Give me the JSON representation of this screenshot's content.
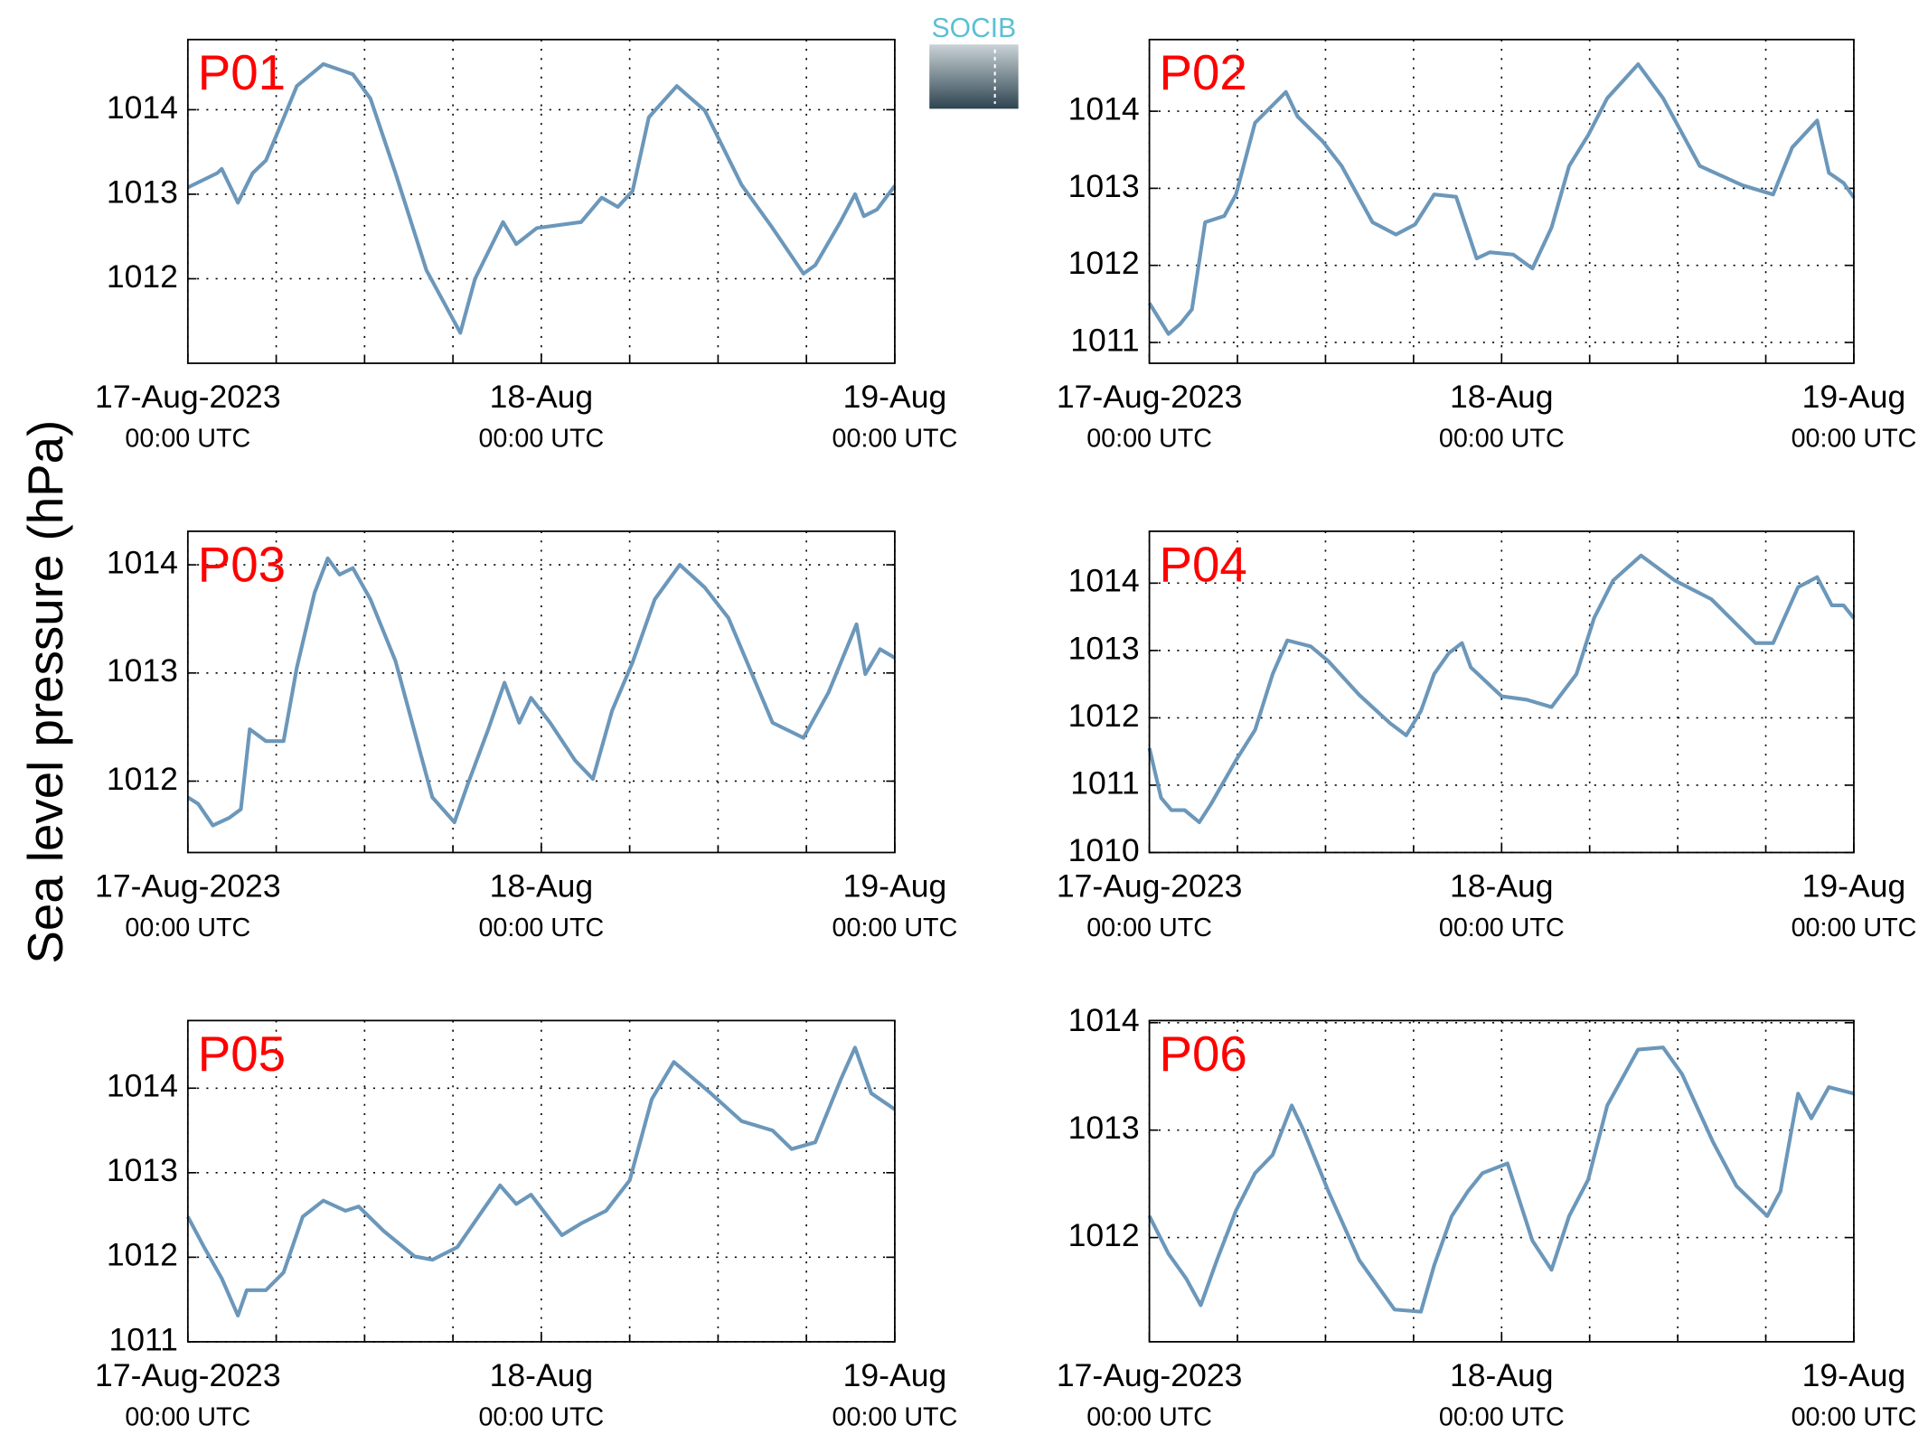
{
  "ylabel": "Sea level pressure (hPa)",
  "logo": "SOCIB",
  "chart_data": [
    {
      "type": "line",
      "title": "P01",
      "title_color": "#ff0000",
      "color": "#6b97ba",
      "x": [
        0,
        2,
        2.3,
        3.4,
        4.4,
        5.3,
        6.5,
        7.4,
        9.2,
        11.2,
        12.4,
        14.1,
        16.2,
        18.5,
        19.5,
        21.4,
        22.3,
        23.7,
        26.7,
        28.1,
        29.2,
        30.2,
        31.3,
        33.2,
        35.1,
        37.6,
        39.7,
        41.8,
        42.6,
        44.3,
        45.3,
        45.9,
        46.8,
        48
      ],
      "values": [
        1013.08,
        1013.25,
        1013.3,
        1012.9,
        1013.25,
        1013.4,
        1013.9,
        1014.28,
        1014.54,
        1014.42,
        1014.13,
        1013.25,
        1012.1,
        1011.36,
        1012.0,
        1012.67,
        1012.41,
        1012.6,
        1012.67,
        1012.96,
        1012.85,
        1013.04,
        1013.91,
        1014.28,
        1013.99,
        1013.11,
        1012.6,
        1012.06,
        1012.16,
        1012.67,
        1013.0,
        1012.74,
        1012.82,
        1013.1
      ],
      "xlim": [
        0,
        48
      ],
      "xticks": [
        {
          "value": 0,
          "label": [
            "17-Aug-2023",
            "00:00 UTC"
          ]
        },
        {
          "value": 24,
          "label": [
            "18-Aug",
            "00:00 UTC"
          ]
        },
        {
          "value": 48,
          "label": [
            "19-Aug",
            "00:00 UTC"
          ]
        }
      ],
      "xminorticks": [
        6,
        12,
        18,
        30,
        36,
        42
      ],
      "ylim": [
        1011.0,
        1014.83
      ],
      "yticks": [
        1012,
        1013,
        1014
      ],
      "grid": true
    },
    {
      "type": "line",
      "title": "P02",
      "title_color": "#ff0000",
      "color": "#6b97ba",
      "x": [
        0,
        1.3,
        2.1,
        2.9,
        3.8,
        5.1,
        5.9,
        7.2,
        9.3,
        10.1,
        11.8,
        13.1,
        15.2,
        16.8,
        18.1,
        19.4,
        20.9,
        22.3,
        23.2,
        24.8,
        26.1,
        27.4,
        28.6,
        29.9,
        31.2,
        33.3,
        35.0,
        37.5,
        40.4,
        42.5,
        43.8,
        45.5,
        46.3,
        47.3,
        48
      ],
      "values": [
        1011.51,
        1011.11,
        1011.24,
        1011.43,
        1012.56,
        1012.64,
        1012.92,
        1013.85,
        1014.25,
        1013.93,
        1013.61,
        1013.29,
        1012.56,
        1012.4,
        1012.53,
        1012.92,
        1012.89,
        1012.09,
        1012.17,
        1012.14,
        1011.96,
        1012.49,
        1013.29,
        1013.69,
        1014.17,
        1014.61,
        1014.17,
        1013.29,
        1013.04,
        1012.92,
        1013.53,
        1013.88,
        1013.2,
        1013.07,
        1012.88
      ],
      "xlim": [
        0,
        48
      ],
      "xticks": [
        {
          "value": 0,
          "label": [
            "17-Aug-2023",
            "00:00 UTC"
          ]
        },
        {
          "value": 24,
          "label": [
            "18-Aug",
            "00:00 UTC"
          ]
        },
        {
          "value": 48,
          "label": [
            "19-Aug",
            "00:00 UTC"
          ]
        }
      ],
      "xminorticks": [
        6,
        12,
        18,
        30,
        36,
        42
      ],
      "ylim": [
        1010.73,
        1014.93
      ],
      "yticks": [
        1011,
        1012,
        1013,
        1014
      ],
      "grid": true
    },
    {
      "type": "line",
      "title": "P03",
      "title_color": "#ff0000",
      "color": "#6b97ba",
      "x": [
        0,
        0.7,
        1.7,
        2.8,
        3.6,
        4.2,
        5.3,
        6.5,
        7.4,
        8.6,
        9.5,
        10.3,
        11.2,
        12.4,
        14.1,
        16.6,
        18.1,
        19.0,
        20.4,
        21.5,
        22.5,
        23.3,
        24.6,
        26.3,
        27.5,
        28.8,
        30.2,
        31.7,
        33.4,
        35.1,
        36.7,
        39.7,
        41.8,
        43.5,
        45.4,
        46.0,
        47.0,
        48
      ],
      "values": [
        1011.85,
        1011.79,
        1011.59,
        1011.66,
        1011.74,
        1012.48,
        1012.37,
        1012.37,
        1013.05,
        1013.74,
        1014.06,
        1013.91,
        1013.97,
        1013.68,
        1013.11,
        1011.85,
        1011.62,
        1011.97,
        1012.48,
        1012.91,
        1012.54,
        1012.77,
        1012.54,
        1012.19,
        1012.02,
        1012.65,
        1013.1,
        1013.68,
        1014.0,
        1013.79,
        1013.51,
        1012.54,
        1012.4,
        1012.82,
        1013.45,
        1012.99,
        1013.22,
        1013.14
      ],
      "xlim": [
        0,
        48
      ],
      "xticks": [
        {
          "value": 0,
          "label": [
            "17-Aug-2023",
            "00:00 UTC"
          ]
        },
        {
          "value": 24,
          "label": [
            "18-Aug",
            "00:00 UTC"
          ]
        },
        {
          "value": 48,
          "label": [
            "19-Aug",
            "00:00 UTC"
          ]
        }
      ],
      "xminorticks": [
        6,
        12,
        18,
        30,
        36,
        42
      ],
      "ylim": [
        1011.34,
        1014.31
      ],
      "yticks": [
        1012,
        1013,
        1014
      ],
      "grid": true
    },
    {
      "type": "line",
      "title": "P04",
      "title_color": "#ff0000",
      "color": "#6b97ba",
      "x": [
        0,
        0.8,
        1.5,
        2.4,
        3.4,
        4.2,
        5.9,
        7.2,
        8.4,
        9.4,
        11.0,
        12.2,
        14.3,
        16.4,
        17.5,
        18.5,
        19.4,
        20.4,
        21.3,
        21.9,
        24.0,
        25.7,
        27.4,
        29.1,
        30.3,
        31.6,
        33.5,
        35.8,
        38.3,
        41.3,
        42.5,
        44.2,
        45.5,
        46.5,
        47.3,
        48
      ],
      "values": [
        1011.55,
        1010.81,
        1010.63,
        1010.63,
        1010.45,
        1010.72,
        1011.37,
        1011.82,
        1012.65,
        1013.15,
        1013.06,
        1012.84,
        1012.34,
        1011.92,
        1011.74,
        1012.1,
        1012.65,
        1012.96,
        1013.11,
        1012.75,
        1012.32,
        1012.27,
        1012.16,
        1012.65,
        1013.48,
        1014.04,
        1014.41,
        1014.04,
        1013.76,
        1013.11,
        1013.11,
        1013.94,
        1014.09,
        1013.67,
        1013.67,
        1013.48
      ],
      "xlim": [
        0,
        48
      ],
      "xticks": [
        {
          "value": 0,
          "label": [
            "17-Aug-2023",
            "00:00 UTC"
          ]
        },
        {
          "value": 24,
          "label": [
            "18-Aug",
            "00:00 UTC"
          ]
        },
        {
          "value": 48,
          "label": [
            "19-Aug",
            "00:00 UTC"
          ]
        }
      ],
      "xminorticks": [
        6,
        12,
        18,
        30,
        36,
        42
      ],
      "ylim": [
        1010,
        1014.77
      ],
      "yticks": [
        1010,
        1011,
        1012,
        1013,
        1014
      ],
      "grid": true
    },
    {
      "type": "line",
      "title": "P05",
      "title_color": "#ff0000",
      "color": "#6b97ba",
      "x": [
        0,
        1.1,
        2.3,
        3.4,
        4.0,
        5.3,
        6.5,
        7.8,
        9.2,
        10.7,
        11.6,
        13.3,
        15.4,
        16.6,
        18.3,
        20.0,
        21.2,
        22.3,
        23.3,
        25.4,
        26.7,
        28.4,
        30.0,
        31.5,
        33.0,
        35.5,
        37.6,
        39.7,
        41.0,
        42.6,
        44.3,
        45.3,
        46.4,
        48
      ],
      "values": [
        1012.48,
        1012.12,
        1011.75,
        1011.31,
        1011.61,
        1011.61,
        1011.82,
        1012.48,
        1012.67,
        1012.55,
        1012.6,
        1012.31,
        1012.01,
        1011.97,
        1012.12,
        1012.55,
        1012.85,
        1012.63,
        1012.74,
        1012.26,
        1012.4,
        1012.55,
        1012.91,
        1013.87,
        1014.31,
        1013.94,
        1013.61,
        1013.5,
        1013.28,
        1013.36,
        1014.09,
        1014.48,
        1013.94,
        1013.75
      ],
      "xlim": [
        0,
        48
      ],
      "xticks": [
        {
          "value": 0,
          "label": [
            "17-Aug-2023",
            "00:00 UTC"
          ]
        },
        {
          "value": 24,
          "label": [
            "18-Aug",
            "00:00 UTC"
          ]
        },
        {
          "value": 48,
          "label": [
            "19-Aug",
            "00:00 UTC"
          ]
        }
      ],
      "xminorticks": [
        6,
        12,
        18,
        30,
        36,
        42
      ],
      "ylim": [
        1011,
        1014.8
      ],
      "yticks": [
        1011,
        1012,
        1013,
        1014
      ],
      "grid": true
    },
    {
      "type": "line",
      "title": "P06",
      "title_color": "#ff0000",
      "color": "#6b97ba",
      "x": [
        0,
        1.3,
        2.5,
        3.5,
        4.6,
        5.9,
        7.2,
        8.4,
        9.7,
        10.5,
        12.2,
        14.3,
        16.7,
        18.5,
        19.4,
        20.6,
        21.7,
        22.7,
        24.4,
        26.1,
        27.4,
        28.6,
        29.9,
        31.2,
        33.3,
        35.0,
        36.3,
        38.4,
        40.0,
        42.1,
        43.0,
        44.2,
        45.1,
        46.3,
        48
      ],
      "values": [
        1012.2,
        1011.85,
        1011.62,
        1011.37,
        1011.79,
        1012.25,
        1012.6,
        1012.77,
        1013.23,
        1013.0,
        1012.43,
        1011.79,
        1011.33,
        1011.31,
        1011.74,
        1012.2,
        1012.43,
        1012.6,
        1012.69,
        1011.97,
        1011.7,
        1012.2,
        1012.54,
        1013.23,
        1013.75,
        1013.77,
        1013.52,
        1012.89,
        1012.48,
        1012.2,
        1012.43,
        1013.34,
        1013.11,
        1013.4,
        1013.34
      ],
      "xlim": [
        0,
        48
      ],
      "xticks": [
        {
          "value": 0,
          "label": [
            "17-Aug-2023",
            "00:00 UTC"
          ]
        },
        {
          "value": 24,
          "label": [
            "18-Aug",
            "00:00 UTC"
          ]
        },
        {
          "value": 48,
          "label": [
            "19-Aug",
            "00:00 UTC"
          ]
        }
      ],
      "xminorticks": [
        6,
        12,
        18,
        30,
        36,
        42
      ],
      "ylim": [
        1011.03,
        1014.02
      ],
      "yticks": [
        1012,
        1013,
        1014
      ],
      "grid": true
    }
  ]
}
